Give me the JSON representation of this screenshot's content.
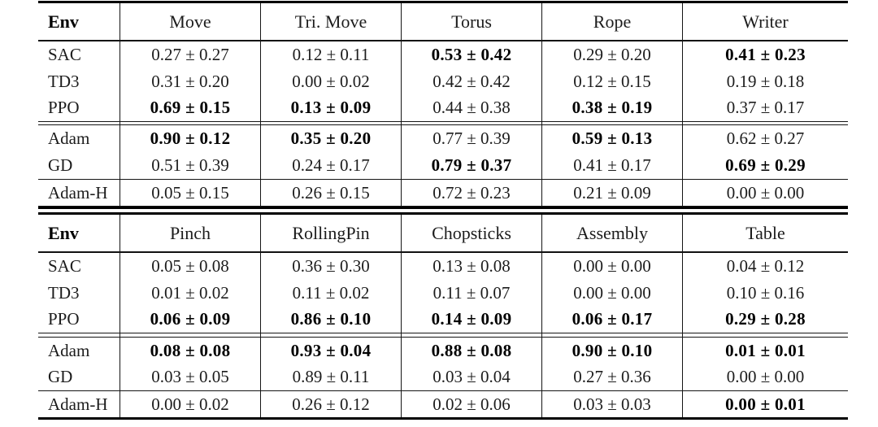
{
  "figure": {
    "plus_minus_symbol": "±",
    "tables": [
      {
        "env_header": "Env",
        "columns": [
          "Move",
          "Tri. Move",
          "Torus",
          "Rope",
          "Writer"
        ],
        "groups": [
          {
            "rows": [
              {
                "label": "SAC",
                "values": [
                  "0.27 ± 0.27",
                  "0.12 ± 0.11",
                  "0.53 ± 0.42",
                  "0.29 ± 0.20",
                  "0.41 ± 0.23"
                ],
                "bold": [
                  false,
                  false,
                  true,
                  false,
                  true
                ]
              },
              {
                "label": "TD3",
                "values": [
                  "0.31 ± 0.20",
                  "0.00 ± 0.02",
                  "0.42 ± 0.42",
                  "0.12 ± 0.15",
                  "0.19 ± 0.18"
                ],
                "bold": [
                  false,
                  false,
                  false,
                  false,
                  false
                ]
              },
              {
                "label": "PPO",
                "values": [
                  "0.69 ± 0.15",
                  "0.13 ± 0.09",
                  "0.44 ± 0.38",
                  "0.38 ± 0.19",
                  "0.37 ± 0.17"
                ],
                "bold": [
                  true,
                  true,
                  false,
                  true,
                  false
                ]
              }
            ]
          },
          {
            "rows": [
              {
                "label": "Adam",
                "values": [
                  "0.90 ± 0.12",
                  "0.35 ± 0.20",
                  "0.77 ± 0.39",
                  "0.59 ± 0.13",
                  "0.62 ± 0.27"
                ],
                "bold": [
                  true,
                  true,
                  false,
                  true,
                  false
                ]
              },
              {
                "label": "GD",
                "values": [
                  "0.51 ± 0.39",
                  "0.24 ± 0.17",
                  "0.79 ± 0.37",
                  "0.41 ± 0.17",
                  "0.69 ± 0.29"
                ],
                "bold": [
                  false,
                  false,
                  true,
                  false,
                  true
                ]
              }
            ]
          },
          {
            "rows": [
              {
                "label": "Adam-H",
                "values": [
                  "0.05 ± 0.15",
                  "0.26 ± 0.15",
                  "0.72 ± 0.23",
                  "0.21 ± 0.09",
                  "0.00 ± 0.00"
                ],
                "bold": [
                  false,
                  false,
                  false,
                  false,
                  false
                ]
              }
            ]
          }
        ]
      },
      {
        "env_header": "Env",
        "columns": [
          "Pinch",
          "RollingPin",
          "Chopsticks",
          "Assembly",
          "Table"
        ],
        "groups": [
          {
            "rows": [
              {
                "label": "SAC",
                "values": [
                  "0.05 ± 0.08",
                  "0.36 ± 0.30",
                  "0.13 ± 0.08",
                  "0.00 ± 0.00",
                  "0.04 ± 0.12"
                ],
                "bold": [
                  false,
                  false,
                  false,
                  false,
                  false
                ]
              },
              {
                "label": "TD3",
                "values": [
                  "0.01 ± 0.02",
                  "0.11 ± 0.02",
                  "0.11 ± 0.07",
                  "0.00 ± 0.00",
                  "0.10 ± 0.16"
                ],
                "bold": [
                  false,
                  false,
                  false,
                  false,
                  false
                ]
              },
              {
                "label": "PPO",
                "values": [
                  "0.06 ± 0.09",
                  "0.86 ± 0.10",
                  "0.14 ± 0.09",
                  "0.06 ± 0.17",
                  "0.29 ± 0.28"
                ],
                "bold": [
                  true,
                  true,
                  true,
                  true,
                  true
                ]
              }
            ]
          },
          {
            "rows": [
              {
                "label": "Adam",
                "values": [
                  "0.08 ± 0.08",
                  "0.93 ± 0.04",
                  "0.88 ± 0.08",
                  "0.90 ± 0.10",
                  "0.01 ± 0.01"
                ],
                "bold": [
                  true,
                  true,
                  true,
                  true,
                  true
                ]
              },
              {
                "label": "GD",
                "values": [
                  "0.03 ± 0.05",
                  "0.89 ± 0.11",
                  "0.03 ± 0.04",
                  "0.27 ± 0.36",
                  "0.00 ± 0.00"
                ],
                "bold": [
                  false,
                  false,
                  false,
                  false,
                  false
                ]
              }
            ]
          },
          {
            "rows": [
              {
                "label": "Adam-H",
                "values": [
                  "0.00 ± 0.02",
                  "0.26 ± 0.12",
                  "0.02 ± 0.06",
                  "0.03 ± 0.03",
                  "0.00 ± 0.01"
                ],
                "bold": [
                  false,
                  false,
                  false,
                  false,
                  true
                ]
              }
            ]
          }
        ]
      }
    ]
  }
}
